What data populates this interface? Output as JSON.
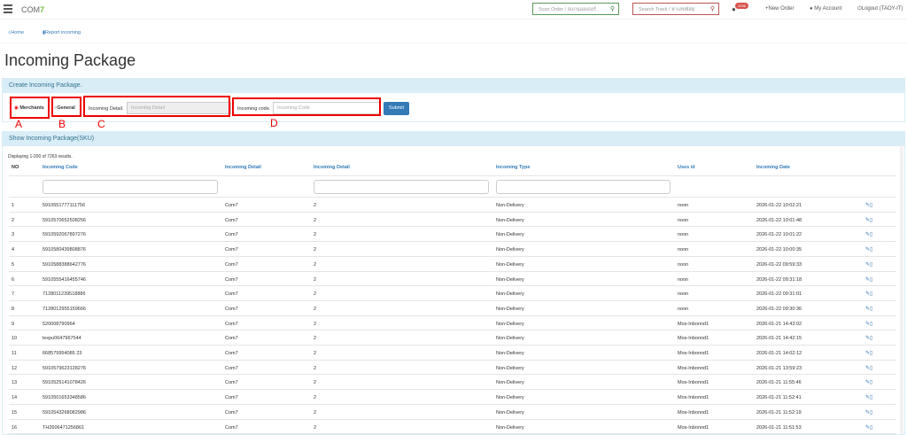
{
  "nav": {
    "logo": "COM7",
    "scan_placeholder": "Scan Order / สแกนออเดอร์",
    "track_placeholder": "Search Track / หาเลขพัสดุ",
    "notification_count": "2296",
    "new_order": "+New Order",
    "my_account": "My Account",
    "logout": "Logout (TAOY-IT)"
  },
  "breadcrumb": {
    "home": "Home",
    "report": "Report incoming"
  },
  "page_title": "Incoming Package",
  "create_panel": {
    "title": "Create Incoming Package.",
    "merchants_label": "Merchants",
    "general_label": "General",
    "merchants_selected": true,
    "detail_label": "Incoming Detail.",
    "detail_placeholder": "Incoming Detail",
    "code_label": "Incoming code.",
    "code_placeholder": "Incoming Code",
    "submit": "Submit"
  },
  "annotations": [
    "A",
    "B",
    "C",
    "D"
  ],
  "list_panel": {
    "title": "Show Incoming Package(SKU)",
    "summary": "Displaying 1-200 of 7263 results.",
    "columns": [
      "NO",
      "Incoming Code",
      "Incoming Detail",
      "Incoming Detail",
      "Incoming Type",
      "Uses id",
      "Incoming Date"
    ],
    "rows": [
      [
        "1",
        "5910551777111756",
        "Com7",
        "2",
        "Non-Delivery",
        "noon",
        "2026-01-22 10:02:21"
      ],
      [
        "2",
        "5910570652508256",
        "Com7",
        "2",
        "Non-Delivery",
        "noon",
        "2026-01-22 10:01:48"
      ],
      [
        "3",
        "5910592067897276",
        "Com7",
        "2",
        "Non-Delivery",
        "noon",
        "2026-01-22 10:01:22"
      ],
      [
        "4",
        "5910580439808876",
        "Com7",
        "2",
        "Non-Delivery",
        "noon",
        "2026-01-22 10:00:35"
      ],
      [
        "5",
        "5910588388642776",
        "Com7",
        "2",
        "Non-Delivery",
        "noon",
        "2026-01-22 09:59:33"
      ],
      [
        "6",
        "5910555416455746",
        "Com7",
        "2",
        "Non-Delivery",
        "noon",
        "2026-01-22 09:31:18"
      ],
      [
        "7",
        "7128011239518886",
        "Com7",
        "2",
        "Non-Delivery",
        "noon",
        "2026-01-22 09:31:01"
      ],
      [
        "8",
        "7128012955159666",
        "Com7",
        "2",
        "Non-Delivery",
        "noon",
        "2026-01-22 09:30:36"
      ],
      [
        "9",
        "520008790964",
        "Com7",
        "2",
        "Non-Delivery",
        "Mos-Inbonnd1",
        "2026-01-21 14:43:02"
      ],
      [
        "10",
        "lexpu0647967544",
        "Com7",
        "2",
        "Non-Delivery",
        "Mos-Inbonnd1",
        "2026-01-21 14:42:15"
      ],
      [
        "11",
        "668579954085 23",
        "Com7",
        "2",
        "Non-Delivery",
        "Mos-Inbonnd1",
        "2026-01-21 14:02:12"
      ],
      [
        "12",
        "5910579623128276",
        "Com7",
        "2",
        "Non-Delivery",
        "Mos-Inbonnd1",
        "2026-01-21 13:59:23"
      ],
      [
        "13",
        "5910525141078426",
        "Com7",
        "2",
        "Non-Delivery",
        "Mos-Inbonnd1",
        "2026-01-21 11:55:46"
      ],
      [
        "14",
        "5910501653348586",
        "Com7",
        "2",
        "Non-Delivery",
        "Mos-Inbonnd1",
        "2026-01-21 11:52:41"
      ],
      [
        "15",
        "5910543268082986",
        "Com7",
        "2",
        "Non-Delivery",
        "Mos-Inbonnd1",
        "2026-01-21 11:52:19"
      ],
      [
        "16",
        "TH2606471256861",
        "Com7",
        "2",
        "Non-Delivery",
        "Mos-Inbonnd1",
        "2026-01-21 11:51:53"
      ]
    ]
  }
}
